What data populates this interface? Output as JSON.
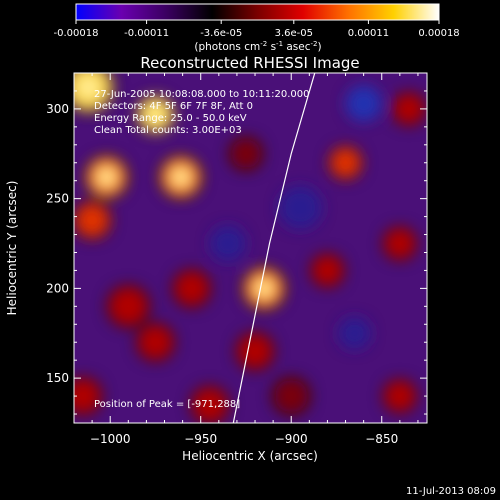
{
  "colorbar": {
    "ticks": [
      "-0.00018",
      "-0.00011",
      "-3.6e-05",
      "3.6e-05",
      "0.00011",
      "0.00018"
    ],
    "range": [
      -0.00018,
      0.00018
    ],
    "stops": [
      "#0000ff",
      "#6a00b0",
      "#3a0060",
      "#000000",
      "#7a0000",
      "#e00000",
      "#ff7000",
      "#ffd000",
      "#ffffff"
    ]
  },
  "unit_label": {
    "prefix": "(photons cm",
    "e1": "-2",
    "mid1": " s",
    "e2": "-1",
    "mid2": " asec",
    "e3": "-2",
    "suffix": ")"
  },
  "chart_data": {
    "type": "heatmap",
    "title": "Reconstructed RHESSI Image",
    "xlabel": "Heliocentric X (arcsec)",
    "ylabel": "Heliocentric Y (arcsec)",
    "xlim": [
      -1020,
      -825
    ],
    "ylim": [
      125,
      320
    ],
    "xticks": [
      -1000,
      -950,
      -900,
      -850
    ],
    "yticks": [
      150,
      200,
      250,
      300
    ],
    "xtick_labels": [
      "−1000",
      "−950",
      "−900",
      "−850"
    ],
    "ytick_labels": [
      "150",
      "200",
      "250",
      "300"
    ],
    "annotations": [
      "27-Jun-2005 10:08:08.000 to 10:11:20.000",
      "Detectors: 4F 5F 6F 7F 8F, Att 0",
      "Energy Range: 25.0 - 50.0 keV",
      "Clean    Total counts: 3.00E+03"
    ],
    "peak_label": "Position of Peak = [-971,288]",
    "peak": [
      -971,
      288
    ],
    "limb": [
      [
        -932,
        125
      ],
      [
        -922,
        175
      ],
      [
        -912,
        225
      ],
      [
        -900,
        275
      ],
      [
        -887,
        320
      ]
    ],
    "sources": [
      {
        "x": -1012,
        "y": 312,
        "s": 12,
        "a": 1.0
      },
      {
        "x": -975,
        "y": 297,
        "s": 9,
        "a": 1.0
      },
      {
        "x": -961,
        "y": 262,
        "s": 10,
        "a": 0.8
      },
      {
        "x": -1002,
        "y": 262,
        "s": 10,
        "a": 0.85
      },
      {
        "x": -1010,
        "y": 238,
        "s": 9,
        "a": 0.6
      },
      {
        "x": -955,
        "y": 200,
        "s": 9,
        "a": 0.55
      },
      {
        "x": -990,
        "y": 190,
        "s": 10,
        "a": 0.55
      },
      {
        "x": -975,
        "y": 170,
        "s": 9,
        "a": 0.5
      },
      {
        "x": -1015,
        "y": 140,
        "s": 9,
        "a": 0.5
      },
      {
        "x": -945,
        "y": 135,
        "s": 9,
        "a": 0.45
      },
      {
        "x": -915,
        "y": 200,
        "s": 10,
        "a": 0.85
      },
      {
        "x": -920,
        "y": 165,
        "s": 9,
        "a": 0.5
      },
      {
        "x": -880,
        "y": 210,
        "s": 8,
        "a": 0.55
      },
      {
        "x": -870,
        "y": 270,
        "s": 8,
        "a": 0.6
      },
      {
        "x": -840,
        "y": 225,
        "s": 8,
        "a": 0.5
      },
      {
        "x": -835,
        "y": 300,
        "s": 8,
        "a": 0.45
      },
      {
        "x": -840,
        "y": 140,
        "s": 8,
        "a": 0.5
      },
      {
        "x": -925,
        "y": 275,
        "s": 8,
        "a": 0.35
      },
      {
        "x": -900,
        "y": 140,
        "s": 9,
        "a": 0.4
      }
    ],
    "sinks": [
      {
        "x": -860,
        "y": 303,
        "s": 10,
        "a": 0.6
      },
      {
        "x": -865,
        "y": 175,
        "s": 9,
        "a": 0.45
      },
      {
        "x": -895,
        "y": 245,
        "s": 12,
        "a": 0.3
      },
      {
        "x": -935,
        "y": 225,
        "s": 10,
        "a": 0.25
      }
    ]
  },
  "footer_timestamp": "11-Jul-2013 08:09"
}
